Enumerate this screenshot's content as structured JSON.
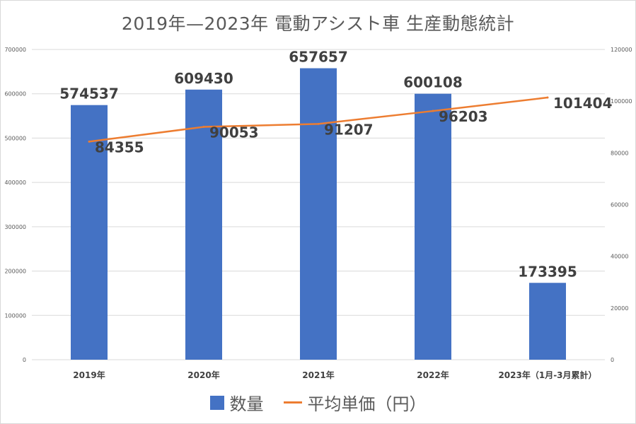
{
  "chart_data": {
    "type": "bar",
    "title": "2019年—2023年 電動アシスト車 生産動態統計",
    "categories": [
      "2019年",
      "2020年",
      "2021年",
      "2022年",
      "2023年（1月-3月累計）"
    ],
    "series": [
      {
        "name": "数量",
        "type": "bar",
        "axis": "left",
        "color": "#4472C4",
        "values": [
          574537,
          609430,
          657657,
          600108,
          173395
        ],
        "labels": [
          "574537",
          "609430",
          "657657",
          "600108",
          "173395"
        ]
      },
      {
        "name": "平均単価（円）",
        "type": "line",
        "axis": "right",
        "color": "#ED7D31",
        "values": [
          84355,
          90053,
          91207,
          96203,
          101404
        ],
        "labels": [
          "84355",
          "90053",
          "91207",
          "96203",
          "101404"
        ]
      }
    ],
    "y_left": {
      "ylim": [
        0,
        700000
      ],
      "ticks": [
        "0",
        "100000",
        "200000",
        "300000",
        "400000",
        "500000",
        "600000",
        "700000"
      ]
    },
    "y_right": {
      "ylim": [
        0,
        120000
      ],
      "ticks": [
        "0",
        "20000",
        "40000",
        "60000",
        "80000",
        "100000",
        "120000"
      ]
    },
    "grid": true,
    "legend_position": "bottom"
  }
}
